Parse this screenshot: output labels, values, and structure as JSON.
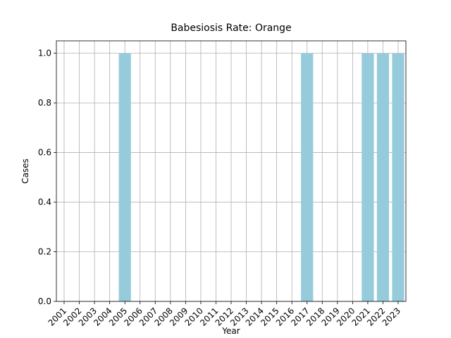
{
  "chart_data": {
    "type": "bar",
    "title": "Babesiosis Rate: Orange",
    "xlabel": "Year",
    "ylabel": "Cases",
    "categories": [
      "2001",
      "2002",
      "2003",
      "2004",
      "2005",
      "2006",
      "2007",
      "2008",
      "2009",
      "2010",
      "2011",
      "2012",
      "2013",
      "2014",
      "2015",
      "2016",
      "2017",
      "2018",
      "2019",
      "2020",
      "2021",
      "2022",
      "2023"
    ],
    "values": [
      0,
      0,
      0,
      0,
      1,
      0,
      0,
      0,
      0,
      0,
      0,
      0,
      0,
      0,
      0,
      0,
      1,
      0,
      0,
      0,
      1,
      1,
      1
    ],
    "color": "#96cbdc",
    "ylim": [
      0,
      1.05
    ],
    "yticks": [
      {
        "value": 0,
        "label": "0.0"
      },
      0.2,
      0.4,
      0.6,
      0.8,
      {
        "value": 1,
        "label": "1.0"
      }
    ],
    "grid": true
  }
}
